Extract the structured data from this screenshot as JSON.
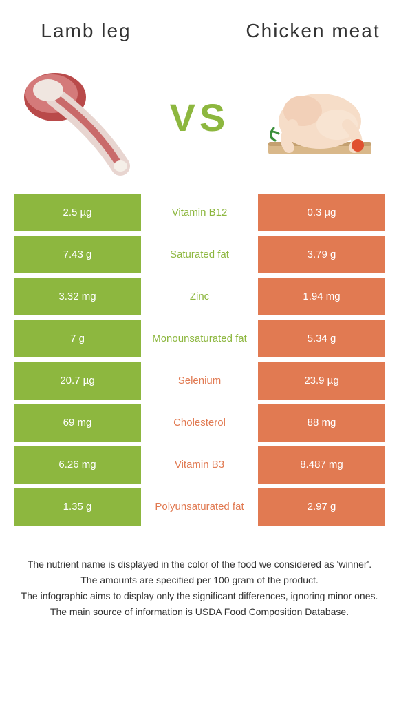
{
  "colors": {
    "left": "#8db73f",
    "right": "#e17a52",
    "text": "#333333",
    "white": "#ffffff"
  },
  "header": {
    "left_title": "Lamb leg",
    "right_title": "Chicken meat",
    "vs": "VS"
  },
  "table_font_size": 15,
  "rows": [
    {
      "left": "2.5 µg",
      "label": "Vitamin B12",
      "right": "0.3 µg",
      "winner": "left"
    },
    {
      "left": "7.43 g",
      "label": "Saturated fat",
      "right": "3.79 g",
      "winner": "left"
    },
    {
      "left": "3.32 mg",
      "label": "Zinc",
      "right": "1.94 mg",
      "winner": "left"
    },
    {
      "left": "7 g",
      "label": "Monounsaturated fat",
      "right": "5.34 g",
      "winner": "left"
    },
    {
      "left": "20.7 µg",
      "label": "Selenium",
      "right": "23.9 µg",
      "winner": "right"
    },
    {
      "left": "69 mg",
      "label": "Cholesterol",
      "right": "88 mg",
      "winner": "right"
    },
    {
      "left": "6.26 mg",
      "label": "Vitamin B3",
      "right": "8.487 mg",
      "winner": "right"
    },
    {
      "left": "1.35 g",
      "label": "Polyunsaturated fat",
      "right": "2.97 g",
      "winner": "right"
    }
  ],
  "footer": [
    "The nutrient name is displayed in the color of the food we considered as 'winner'.",
    "The amounts are specified per 100 gram of the product.",
    "The infographic aims to display only the significant differences, ignoring minor ones.",
    "The main source of information is USDA Food Composition Database."
  ]
}
